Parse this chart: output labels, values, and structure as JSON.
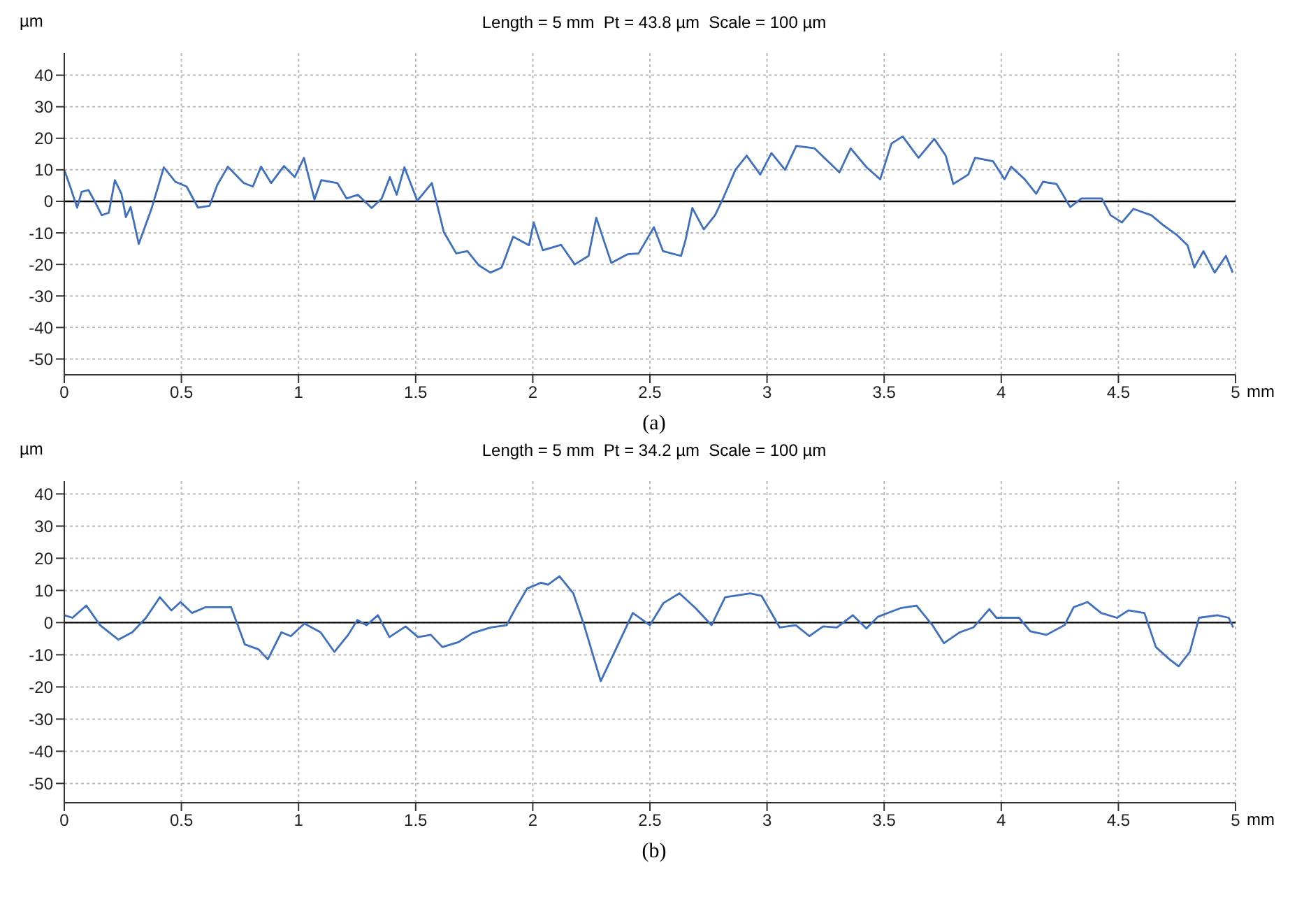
{
  "chart_data": [
    {
      "type": "line",
      "title": "Length = 5 mm  Pt = 43.8 µm  Scale = 100 µm",
      "xlabel": "mm",
      "ylabel": "µm",
      "annotations": [
        "(a)"
      ],
      "xlim": [
        0,
        5
      ],
      "xticks": [
        0,
        0.5,
        1,
        1.5,
        2,
        2.5,
        3,
        3.5,
        4,
        4.5,
        5
      ],
      "ylim": [
        -55,
        47
      ],
      "yticks": [
        -50,
        -40,
        -30,
        -20,
        -10,
        0,
        10,
        20,
        30,
        40
      ],
      "grid": true,
      "ref_lines": [
        {
          "axis": "y",
          "value": 0,
          "color": "#000000"
        }
      ],
      "series": [
        {
          "color": "#3f6fbf",
          "x": [
            0,
            0.025,
            0.055,
            0.074,
            0.103,
            0.13,
            0.16,
            0.19,
            0.216,
            0.244,
            0.263,
            0.283,
            0.318,
            0.372,
            0.425,
            0.474,
            0.522,
            0.571,
            0.62,
            0.653,
            0.698,
            0.766,
            0.805,
            0.84,
            0.883,
            0.938,
            0.984,
            1.023,
            1.068,
            1.097,
            1.166,
            1.205,
            1.253,
            1.312,
            1.355,
            1.39,
            1.419,
            1.452,
            1.507,
            1.569,
            1.62,
            1.673,
            1.721,
            1.77,
            1.819,
            1.867,
            1.916,
            1.984,
            2.004,
            2.043,
            2.121,
            2.179,
            2.238,
            2.271,
            2.335,
            2.404,
            2.452,
            2.517,
            2.556,
            2.633,
            2.653,
            2.681,
            2.73,
            2.778,
            2.817,
            2.865,
            2.913,
            2.971,
            3.019,
            3.077,
            3.125,
            3.203,
            3.309,
            3.357,
            3.425,
            3.483,
            3.531,
            3.579,
            3.647,
            3.714,
            3.763,
            3.795,
            3.859,
            3.888,
            3.965,
            4.014,
            4.042,
            4.1,
            4.149,
            4.178,
            4.236,
            4.294,
            4.342,
            4.429,
            4.467,
            4.515,
            4.564,
            4.641,
            4.689,
            4.747,
            4.795,
            4.824,
            4.863,
            4.911,
            4.959,
            4.988
          ],
          "values": [
            10,
            4.7,
            -2,
            3,
            3.6,
            0,
            -4.4,
            -3.6,
            6.7,
            2.4,
            -5,
            -1.8,
            -13.5,
            -2.4,
            10.8,
            6.2,
            4.7,
            -2,
            -1.4,
            5.2,
            11,
            5.8,
            4.7,
            11,
            5.8,
            11.2,
            7.7,
            13.8,
            0.6,
            6.7,
            5.8,
            0.9,
            2.1,
            -2.1,
            0.9,
            7.7,
            2.1,
            10.8,
            0.2,
            5.8,
            -9.7,
            -16.5,
            -15.8,
            -20.3,
            -22.6,
            -21,
            -11.2,
            -13.9,
            -6.7,
            -15.5,
            -13.8,
            -20,
            -17.3,
            -5.2,
            -19.5,
            -16.8,
            -16.5,
            -8.2,
            -15.8,
            -17.3,
            -12,
            -2.1,
            -8.9,
            -4.4,
            1.7,
            10,
            14.5,
            8.5,
            15.3,
            10,
            17.6,
            16.8,
            9.2,
            16.8,
            10.8,
            7,
            18.3,
            20.6,
            13.8,
            19.8,
            14.5,
            5.5,
            8.5,
            13.8,
            12.7,
            7,
            11,
            7,
            2.4,
            6.2,
            5.5,
            -1.8,
            0.9,
            0.9,
            -4.4,
            -6.7,
            -2.4,
            -4.4,
            -7.4,
            -10.5,
            -13.9,
            -21,
            -15.8,
            -22.6,
            -17.3,
            -22.6
          ]
        }
      ]
    },
    {
      "type": "line",
      "title": "Length = 5 mm  Pt = 34.2 µm  Scale = 100 µm",
      "xlabel": "mm",
      "ylabel": "µm",
      "annotations": [
        "(b)"
      ],
      "xlim": [
        0,
        5
      ],
      "xticks": [
        0,
        0.5,
        1,
        1.5,
        2,
        2.5,
        3,
        3.5,
        4,
        4.5,
        5
      ],
      "ylim": [
        -56,
        44
      ],
      "yticks": [
        -50,
        -40,
        -30,
        -20,
        -10,
        0,
        10,
        20,
        30,
        40
      ],
      "grid": true,
      "ref_lines": [
        {
          "axis": "y",
          "value": 0,
          "color": "#000000"
        }
      ],
      "series": [
        {
          "color": "#3f6fbf",
          "x": [
            0,
            0.035,
            0.094,
            0.153,
            0.231,
            0.29,
            0.349,
            0.408,
            0.457,
            0.496,
            0.545,
            0.604,
            0.712,
            0.771,
            0.829,
            0.869,
            0.927,
            0.967,
            1.025,
            1.094,
            1.153,
            1.212,
            1.251,
            1.29,
            1.339,
            1.388,
            1.457,
            1.51,
            1.565,
            1.614,
            1.682,
            1.741,
            1.82,
            1.888,
            1.927,
            1.976,
            2.035,
            2.065,
            2.114,
            2.173,
            2.222,
            2.29,
            2.359,
            2.427,
            2.5,
            2.558,
            2.626,
            2.695,
            2.763,
            2.821,
            2.928,
            2.977,
            3.054,
            3.123,
            3.181,
            3.239,
            3.298,
            3.366,
            3.424,
            3.473,
            3.57,
            3.638,
            3.706,
            3.755,
            3.823,
            3.881,
            3.949,
            3.979,
            4.076,
            4.124,
            4.193,
            4.27,
            4.309,
            4.368,
            4.426,
            4.494,
            4.543,
            4.611,
            4.66,
            4.718,
            4.757,
            4.805,
            4.844,
            4.922,
            4.971,
            4.99
          ],
          "values": [
            2.3,
            1.5,
            5.3,
            -0.8,
            -5.3,
            -3,
            1.5,
            7.9,
            3.8,
            6.4,
            3,
            4.8,
            4.8,
            -6.8,
            -8.3,
            -11.4,
            -3,
            -4.2,
            -0.3,
            -3,
            -9.1,
            -3.8,
            0.8,
            -0.8,
            2.3,
            -4.5,
            -1.2,
            -4.5,
            -3.8,
            -7.6,
            -6.1,
            -3.3,
            -1.5,
            -0.8,
            4.5,
            10.6,
            12.4,
            11.8,
            14.4,
            9.1,
            -1.5,
            -18.2,
            -7.6,
            3,
            -0.8,
            6.1,
            9.1,
            4.5,
            -0.8,
            7.9,
            9.1,
            8.3,
            -1.5,
            -0.8,
            -4.2,
            -1.2,
            -1.5,
            2.3,
            -1.8,
            1.8,
            4.5,
            5.3,
            -0.8,
            -6.4,
            -3,
            -1.5,
            4.2,
            1.5,
            1.5,
            -2.7,
            -3.8,
            -0.8,
            4.8,
            6.4,
            3,
            1.5,
            3.8,
            3,
            -7.6,
            -11.4,
            -13.6,
            -9.1,
            1.5,
            2.3,
            1.5,
            -1.5
          ]
        }
      ]
    }
  ]
}
